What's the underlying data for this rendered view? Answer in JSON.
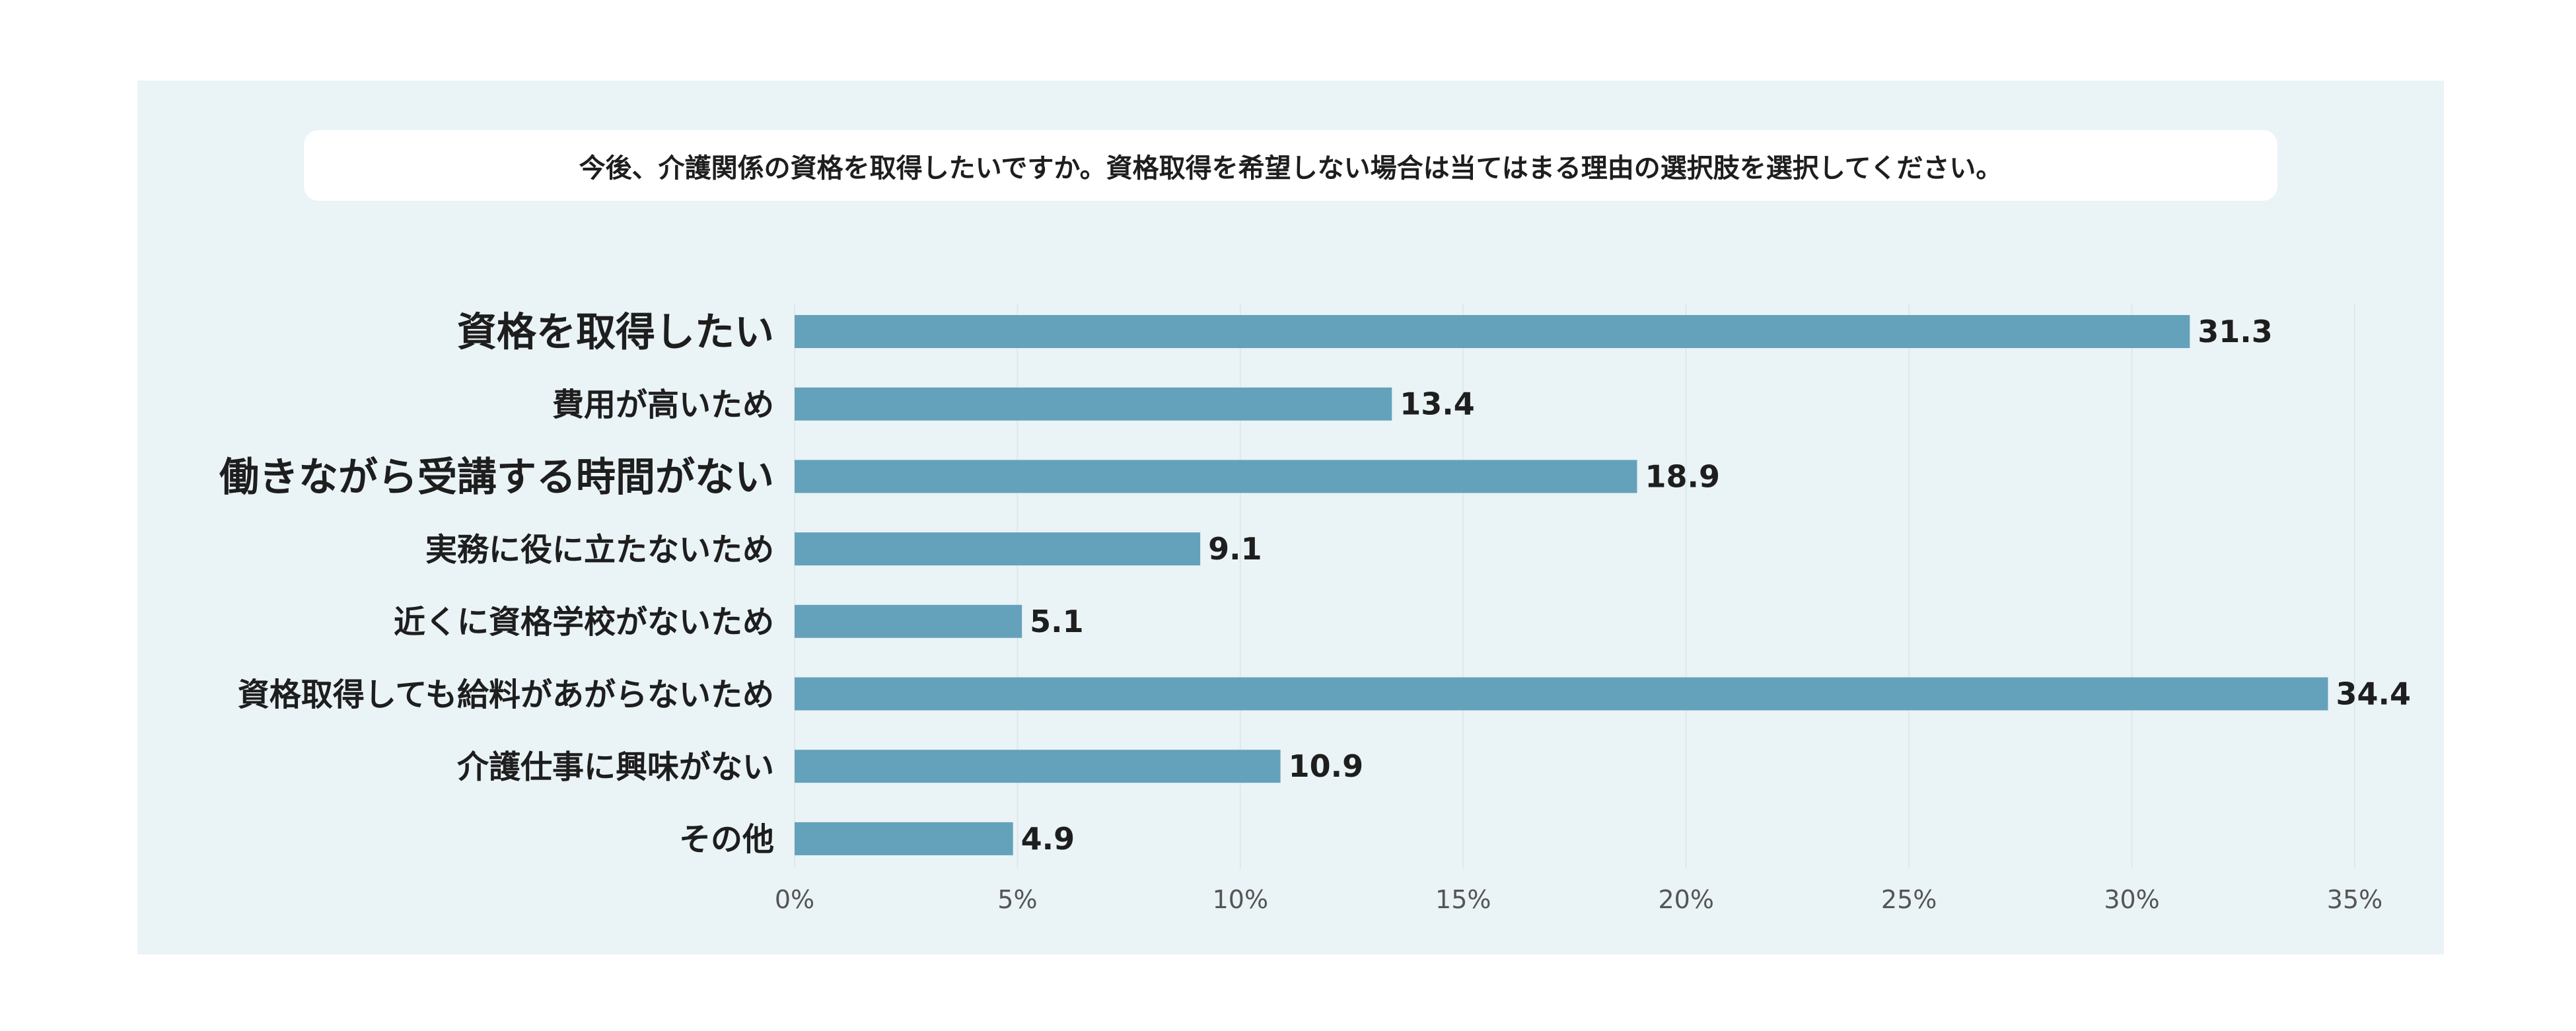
{
  "chart_data": {
    "type": "bar",
    "orientation": "horizontal",
    "title": "今後、介護関係の資格を取得したいですか。資格取得を希望しない場合は当てはまる理由の選択肢を選択してください。",
    "categories": [
      "資格を取得したい",
      "費用が高いため",
      "働きながら受講する時間がない",
      "実務に役に立たないため",
      "近くに資格学校がないため",
      "資格取得しても給料があがらないため",
      "介護仕事に興味がない",
      "その他"
    ],
    "values": [
      31.3,
      13.4,
      18.9,
      9.1,
      5.1,
      34.4,
      10.9,
      4.9
    ],
    "value_labels": [
      "31.3",
      "13.4",
      "18.9",
      "9.1",
      "5.1",
      "34.4",
      "10.9",
      "4.9"
    ],
    "xlim": [
      0,
      35
    ],
    "x_ticks": [
      0,
      5,
      10,
      15,
      20,
      25,
      30,
      35
    ],
    "x_tick_labels": [
      "0%",
      "5%",
      "10%",
      "15%",
      "20%",
      "25%",
      "30%",
      "35%"
    ],
    "grid": true,
    "bar_color": "#64a2bb",
    "background_color": "#eaf3f6"
  }
}
